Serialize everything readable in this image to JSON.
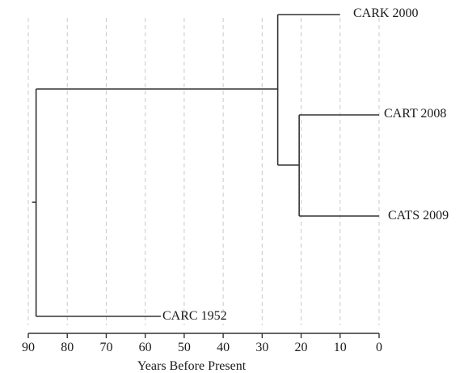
{
  "tree": {
    "tips": [
      {
        "label": "CARK 2000",
        "age": 10
      },
      {
        "label": "CART 2008",
        "age": 0
      },
      {
        "label": "CATS 2009",
        "age": 0
      },
      {
        "label": "CARC 1952",
        "age": 56
      }
    ],
    "nodes": {
      "root": 88,
      "cark_cart_cats": 26,
      "cart_cats": 20.5
    }
  },
  "axis": {
    "label": "Years Before Present",
    "min": 0,
    "max": 90,
    "reversed": true,
    "ticks": [
      "90",
      "80",
      "70",
      "60",
      "50",
      "40",
      "30",
      "20",
      "10",
      "0"
    ]
  },
  "colors": {
    "branch": "#333333",
    "grid": "#c8c8c8"
  }
}
